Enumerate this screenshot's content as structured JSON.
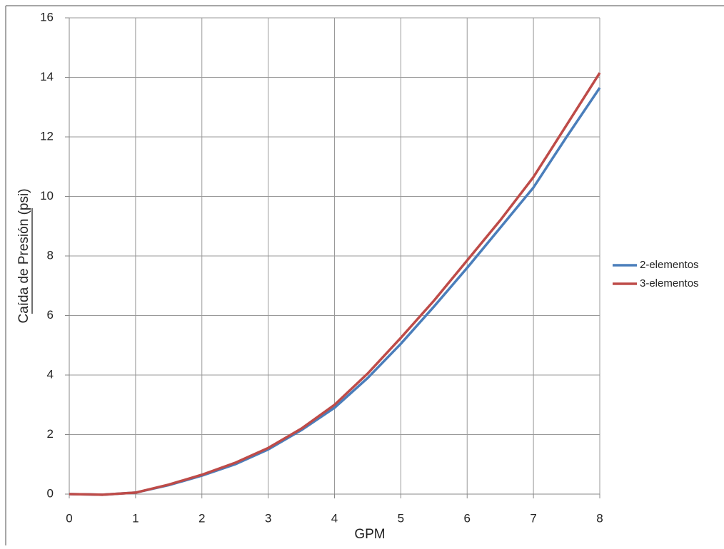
{
  "chart_data": {
    "type": "line",
    "x_label": "GPM",
    "y_label": "Caída de Presión (psi)",
    "x": [
      0,
      0.5,
      1,
      1.5,
      2,
      2.5,
      3,
      3.5,
      4,
      4.5,
      5,
      5.5,
      6,
      6.5,
      7,
      7.5,
      8
    ],
    "series": [
      {
        "name": "2-elementos",
        "color": "#4a7ebb",
        "values": [
          0,
          -0.02,
          0.05,
          0.3,
          0.62,
          1.0,
          1.5,
          2.15,
          2.9,
          3.9,
          5.05,
          6.3,
          7.6,
          8.95,
          10.3,
          12.0,
          13.65
        ]
      },
      {
        "name": "3-elementos",
        "color": "#be4b48",
        "values": [
          0,
          -0.02,
          0.05,
          0.32,
          0.65,
          1.05,
          1.55,
          2.2,
          3.0,
          4.05,
          5.25,
          6.5,
          7.85,
          9.2,
          10.65,
          12.4,
          14.15
        ]
      }
    ],
    "xlim": [
      0,
      8
    ],
    "xticks": [
      0,
      1,
      2,
      3,
      4,
      5,
      6,
      7,
      8
    ],
    "ylim": [
      0,
      16
    ],
    "yticks": [
      0,
      2,
      4,
      6,
      8,
      10,
      12,
      14,
      16
    ],
    "grid": true,
    "legend": "right"
  }
}
